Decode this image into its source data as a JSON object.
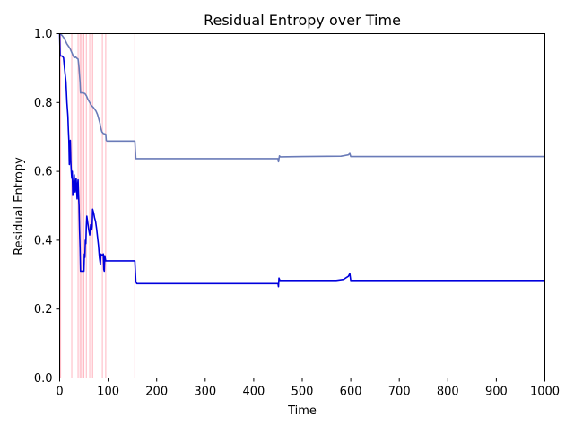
{
  "chart_data": {
    "type": "line",
    "title": "Residual Entropy over Time",
    "xlabel": "Time",
    "ylabel": "Residual Entropy",
    "xlim": [
      0,
      1000
    ],
    "ylim": [
      0,
      1.0
    ],
    "x_ticks": [
      0,
      100,
      200,
      300,
      400,
      500,
      600,
      700,
      800,
      900,
      1000
    ],
    "x_tick_labels": [
      "0",
      "100",
      "200",
      "300",
      "400",
      "500",
      "600",
      "700",
      "800",
      "900",
      "1000"
    ],
    "y_ticks": [
      0.0,
      0.2,
      0.4,
      0.6,
      0.8,
      1.0
    ],
    "y_tick_labels": [
      "0.0",
      "0.2",
      "0.4",
      "0.6",
      "0.8",
      "1.0"
    ],
    "grid": false,
    "legend": "none",
    "vertical_markers": {
      "color": "#ffb6c1",
      "x": [
        2,
        25,
        38,
        42,
        45,
        50,
        55,
        62,
        65,
        68,
        88,
        95,
        155
      ]
    },
    "series": [
      {
        "color": "#6a7bb8",
        "points": [
          [
            0,
            1.0
          ],
          [
            5,
            0.995
          ],
          [
            10,
            0.985
          ],
          [
            15,
            0.97
          ],
          [
            20,
            0.96
          ],
          [
            22,
            0.955
          ],
          [
            25,
            0.945
          ],
          [
            28,
            0.935
          ],
          [
            30,
            0.93
          ],
          [
            33,
            0.932
          ],
          [
            36,
            0.928
          ],
          [
            38,
            0.926
          ],
          [
            40,
            0.9
          ],
          [
            42,
            0.86
          ],
          [
            43,
            0.828
          ],
          [
            48,
            0.828
          ],
          [
            52,
            0.826
          ],
          [
            55,
            0.82
          ],
          [
            58,
            0.81
          ],
          [
            62,
            0.8
          ],
          [
            65,
            0.792
          ],
          [
            70,
            0.785
          ],
          [
            75,
            0.775
          ],
          [
            78,
            0.765
          ],
          [
            80,
            0.755
          ],
          [
            83,
            0.74
          ],
          [
            85,
            0.725
          ],
          [
            87,
            0.715
          ],
          [
            90,
            0.71
          ],
          [
            95,
            0.708
          ],
          [
            96,
            0.69
          ],
          [
            98,
            0.688
          ],
          [
            150,
            0.688
          ],
          [
            155,
            0.688
          ],
          [
            157,
            0.637
          ],
          [
            450,
            0.637
          ],
          [
            451,
            0.628
          ],
          [
            453,
            0.645
          ],
          [
            455,
            0.642
          ],
          [
            500,
            0.643
          ],
          [
            580,
            0.644
          ],
          [
            595,
            0.648
          ],
          [
            598,
            0.652
          ],
          [
            600,
            0.643
          ],
          [
            1000,
            0.643
          ]
        ]
      },
      {
        "color": "#0000dd",
        "points": [
          [
            0,
            1.0
          ],
          [
            1,
            0.935
          ],
          [
            5,
            0.935
          ],
          [
            8,
            0.93
          ],
          [
            10,
            0.9
          ],
          [
            13,
            0.86
          ],
          [
            15,
            0.8
          ],
          [
            17,
            0.76
          ],
          [
            18,
            0.72
          ],
          [
            19,
            0.69
          ],
          [
            20,
            0.62
          ],
          [
            21,
            0.67
          ],
          [
            22,
            0.69
          ],
          [
            23,
            0.63
          ],
          [
            24,
            0.6
          ],
          [
            25,
            0.58
          ],
          [
            26,
            0.6
          ],
          [
            27,
            0.53
          ],
          [
            29,
            0.56
          ],
          [
            30,
            0.59
          ],
          [
            32,
            0.54
          ],
          [
            33,
            0.56
          ],
          [
            34,
            0.58
          ],
          [
            36,
            0.52
          ],
          [
            37,
            0.56
          ],
          [
            38,
            0.575
          ],
          [
            39,
            0.53
          ],
          [
            40,
            0.5
          ],
          [
            41,
            0.43
          ],
          [
            42,
            0.38
          ],
          [
            43,
            0.31
          ],
          [
            50,
            0.31
          ],
          [
            51,
            0.36
          ],
          [
            52,
            0.35
          ],
          [
            53,
            0.4
          ],
          [
            54,
            0.39
          ],
          [
            55,
            0.44
          ],
          [
            56,
            0.47
          ],
          [
            58,
            0.45
          ],
          [
            60,
            0.43
          ],
          [
            62,
            0.415
          ],
          [
            64,
            0.445
          ],
          [
            66,
            0.43
          ],
          [
            67,
            0.44
          ],
          [
            68,
            0.49
          ],
          [
            70,
            0.48
          ],
          [
            72,
            0.465
          ],
          [
            74,
            0.455
          ],
          [
            76,
            0.435
          ],
          [
            78,
            0.41
          ],
          [
            80,
            0.385
          ],
          [
            82,
            0.35
          ],
          [
            84,
            0.33
          ],
          [
            85,
            0.36
          ],
          [
            88,
            0.355
          ],
          [
            90,
            0.36
          ],
          [
            91,
            0.315
          ],
          [
            92,
            0.31
          ],
          [
            93,
            0.355
          ],
          [
            95,
            0.34
          ],
          [
            100,
            0.34
          ],
          [
            150,
            0.34
          ],
          [
            155,
            0.34
          ],
          [
            157,
            0.28
          ],
          [
            159,
            0.274
          ],
          [
            450,
            0.274
          ],
          [
            451,
            0.265
          ],
          [
            452,
            0.29
          ],
          [
            454,
            0.283
          ],
          [
            500,
            0.283
          ],
          [
            570,
            0.283
          ],
          [
            585,
            0.286
          ],
          [
            595,
            0.295
          ],
          [
            598,
            0.303
          ],
          [
            600,
            0.283
          ],
          [
            1000,
            0.283
          ]
        ]
      }
    ]
  }
}
